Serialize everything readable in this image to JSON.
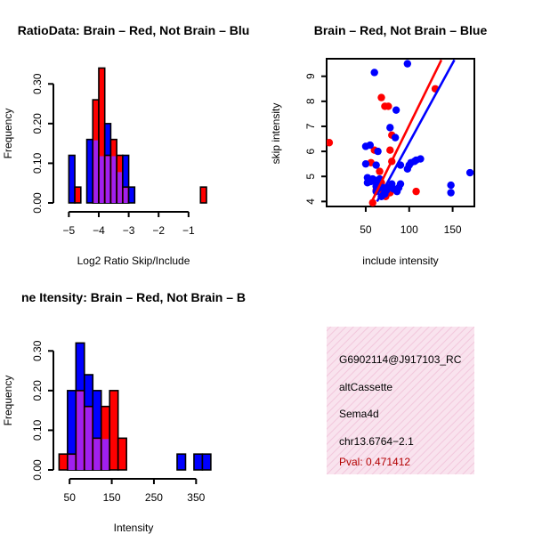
{
  "colors": {
    "brain": "#ff0000",
    "not_brain": "#0000ff",
    "overlap": "#a020f0",
    "info_bg": "#f9e3ee",
    "info_hatch": "#f2c7dc",
    "pval": "#b30000"
  },
  "chart_data": [
    {
      "type": "bar",
      "subtype": "histogram",
      "title": "RatioData: Brain – Red, Not Brain – Blu",
      "xlabel": "Log2 Ratio Skip/Include",
      "ylabel": "Frequency",
      "xlim": [
        -5.1,
        -0.4
      ],
      "ylim": [
        0,
        0.35
      ],
      "xticks": [
        -5,
        -4,
        -3,
        -2,
        -1
      ],
      "xtick_labels": [
        "−5",
        "−4",
        "−3",
        "−2",
        "−1"
      ],
      "yticks": [
        0.0,
        0.1,
        0.2,
        0.3
      ],
      "ytick_labels": [
        "0.00",
        "0.10",
        "0.20",
        "0.30"
      ],
      "bins": [
        {
          "x0": -5.0,
          "x1": -4.8,
          "not_brain": 0.12,
          "brain": 0.0
        },
        {
          "x0": -4.8,
          "x1": -4.6,
          "not_brain": 0.0,
          "brain": 0.04
        },
        {
          "x0": -4.4,
          "x1": -4.2,
          "not_brain": 0.16,
          "brain": 0.0
        },
        {
          "x0": -4.2,
          "x1": -4.0,
          "not_brain": 0.16,
          "brain": 0.26
        },
        {
          "x0": -4.0,
          "x1": -3.8,
          "not_brain": 0.12,
          "brain": 0.34
        },
        {
          "x0": -3.8,
          "x1": -3.6,
          "not_brain": 0.2,
          "brain": 0.12
        },
        {
          "x0": -3.6,
          "x1": -3.4,
          "not_brain": 0.12,
          "brain": 0.16
        },
        {
          "x0": -3.4,
          "x1": -3.2,
          "not_brain": 0.08,
          "brain": 0.12
        },
        {
          "x0": -3.2,
          "x1": -3.0,
          "not_brain": 0.12,
          "brain": 0.04
        },
        {
          "x0": -3.0,
          "x1": -2.8,
          "not_brain": 0.04,
          "brain": 0.0
        },
        {
          "x0": -0.6,
          "x1": -0.4,
          "not_brain": 0.0,
          "brain": 0.04
        }
      ]
    },
    {
      "type": "scatter",
      "title": "Brain – Red, Not Brain – Blue",
      "xlabel": "include intensity",
      "ylabel": "skip intensity",
      "xlim": [
        5,
        175
      ],
      "ylim": [
        3.8,
        9.7
      ],
      "xticks": [
        50,
        100,
        150
      ],
      "xtick_labels": [
        "50",
        "100",
        "150"
      ],
      "yticks": [
        4,
        5,
        6,
        7,
        8,
        9
      ],
      "ytick_labels": [
        "4",
        "5",
        "6",
        "7",
        "8",
        "9"
      ],
      "series": [
        {
          "name": "Brain",
          "color_key": "brain",
          "points": [
            [
              8,
              6.35
            ],
            [
              56,
              5.55
            ],
            [
              60,
              6.05
            ],
            [
              68,
              8.15
            ],
            [
              72,
              7.8
            ],
            [
              76,
              7.8
            ],
            [
              78,
              6.05
            ],
            [
              80,
              6.65
            ],
            [
              80,
              5.6
            ],
            [
              68,
              4.75
            ],
            [
              70,
              4.4
            ],
            [
              62,
              4.45
            ],
            [
              58,
              3.95
            ],
            [
              73,
              4.2
            ],
            [
              75,
              4.55
            ],
            [
              78,
              4.35
            ],
            [
              108,
              4.4
            ],
            [
              130,
              8.5
            ],
            [
              66,
              5.2
            ]
          ],
          "fit_line": [
            [
              57,
              4.0
            ],
            [
              137,
              9.65
            ]
          ]
        },
        {
          "name": "Not Brain",
          "color_key": "not_brain",
          "points": [
            [
              50,
              6.2
            ],
            [
              55,
              6.25
            ],
            [
              62,
              5.45
            ],
            [
              64,
              6.0
            ],
            [
              68,
              4.2
            ],
            [
              60,
              9.15
            ],
            [
              98,
              9.5
            ],
            [
              78,
              6.95
            ],
            [
              84,
              6.55
            ],
            [
              85,
              7.65
            ],
            [
              90,
              5.45
            ],
            [
              98,
              5.3
            ],
            [
              100,
              5.45
            ],
            [
              102,
              5.55
            ],
            [
              106,
              5.6
            ],
            [
              108,
              5.65
            ],
            [
              113,
              5.7
            ],
            [
              50,
              5.5
            ],
            [
              52,
              4.95
            ],
            [
              56,
              4.8
            ],
            [
              60,
              4.85
            ],
            [
              62,
              4.6
            ],
            [
              65,
              4.75
            ],
            [
              66,
              4.9
            ],
            [
              70,
              4.55
            ],
            [
              72,
              4.3
            ],
            [
              74,
              4.45
            ],
            [
              76,
              4.55
            ],
            [
              80,
              4.7
            ],
            [
              82,
              4.5
            ],
            [
              86,
              4.4
            ],
            [
              88,
              4.55
            ],
            [
              90,
              4.7
            ],
            [
              52,
              4.75
            ],
            [
              58,
              4.9
            ],
            [
              62,
              4.4
            ],
            [
              64,
              4.5
            ],
            [
              148,
              4.65
            ],
            [
              148,
              4.35
            ],
            [
              170,
              5.15
            ]
          ],
          "fit_line": [
            [
              63,
              4.0
            ],
            [
              152,
              9.65
            ]
          ]
        }
      ]
    },
    {
      "type": "bar",
      "subtype": "histogram",
      "title": "ne Itensity: Brain – Red, Not Brain – B",
      "xlabel": "Intensity",
      "ylabel": "Frequency",
      "xlim": [
        20,
        400
      ],
      "ylim": [
        0,
        0.35
      ],
      "xticks": [
        50,
        150,
        250,
        350
      ],
      "xtick_labels": [
        "50",
        "150",
        "250",
        "350"
      ],
      "yticks": [
        0.0,
        0.1,
        0.2,
        0.3
      ],
      "ytick_labels": [
        "0.00",
        "0.10",
        "0.20",
        "0.30"
      ],
      "bins": [
        {
          "x0": 25,
          "x1": 45,
          "not_brain": 0.0,
          "brain": 0.04
        },
        {
          "x0": 45,
          "x1": 65,
          "not_brain": 0.2,
          "brain": 0.04
        },
        {
          "x0": 65,
          "x1": 85,
          "not_brain": 0.32,
          "brain": 0.2
        },
        {
          "x0": 85,
          "x1": 105,
          "not_brain": 0.24,
          "brain": 0.16
        },
        {
          "x0": 105,
          "x1": 125,
          "not_brain": 0.2,
          "brain": 0.08
        },
        {
          "x0": 125,
          "x1": 145,
          "not_brain": 0.08,
          "brain": 0.16
        },
        {
          "x0": 145,
          "x1": 165,
          "not_brain": 0.0,
          "brain": 0.2
        },
        {
          "x0": 165,
          "x1": 185,
          "not_brain": 0.0,
          "brain": 0.08
        },
        {
          "x0": 305,
          "x1": 325,
          "not_brain": 0.04,
          "brain": 0.0
        },
        {
          "x0": 345,
          "x1": 365,
          "not_brain": 0.04,
          "brain": 0.0
        },
        {
          "x0": 365,
          "x1": 385,
          "not_brain": 0.04,
          "brain": 0.0
        }
      ]
    }
  ],
  "info_panel": {
    "lines": [
      "G6902114@J917103_RC",
      "altCassette",
      "Sema4d",
      "chr13.6764−2.1"
    ],
    "pval": "Pval: 0.471412"
  }
}
